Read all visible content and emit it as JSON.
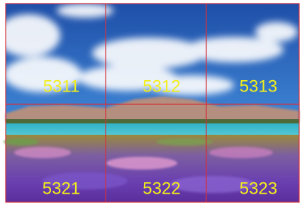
{
  "grid": {
    "rows": [
      [
        "5311",
        "5312",
        "5313"
      ],
      [
        "5321",
        "5322",
        "5323"
      ]
    ]
  }
}
